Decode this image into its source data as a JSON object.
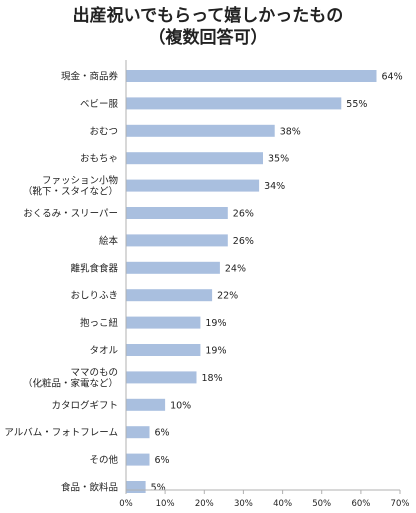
{
  "chart_data": {
    "type": "bar",
    "orientation": "horizontal",
    "title": "出産祝いでもらって嬉しかったもの",
    "subtitle": "（複数回答可）",
    "categories": [
      [
        "現金・商品券"
      ],
      [
        "ベビー服"
      ],
      [
        "おむつ"
      ],
      [
        "おもちゃ"
      ],
      [
        "ファッション小物",
        "（靴下・スタイなど）"
      ],
      [
        "おくるみ・スリーパー"
      ],
      [
        "絵本"
      ],
      [
        "離乳食食器"
      ],
      [
        "おしりふき"
      ],
      [
        "抱っこ紐"
      ],
      [
        "タオル"
      ],
      [
        "ママのもの",
        "（化粧品・家電など）"
      ],
      [
        "カタログギフト"
      ],
      [
        "アルバム・フォトフレーム"
      ],
      [
        "その他"
      ],
      [
        "食品・飲料品"
      ]
    ],
    "values": [
      64,
      55,
      38,
      35,
      34,
      26,
      26,
      24,
      22,
      19,
      19,
      18,
      10,
      6,
      6,
      5
    ],
    "value_labels": [
      "64%",
      "55%",
      "38%",
      "35%",
      "34%",
      "26%",
      "26%",
      "24%",
      "22%",
      "19%",
      "19%",
      "18%",
      "10%",
      "6%",
      "6%",
      "5%"
    ],
    "x_ticks": [
      "0%",
      "10%",
      "20%",
      "30%",
      "40%",
      "50%",
      "60%",
      "70%"
    ],
    "xlim": [
      0,
      70
    ],
    "grid": false,
    "legend": "none",
    "bar_color": "#a9bfdf",
    "axis_color": "#b0b0b0"
  }
}
